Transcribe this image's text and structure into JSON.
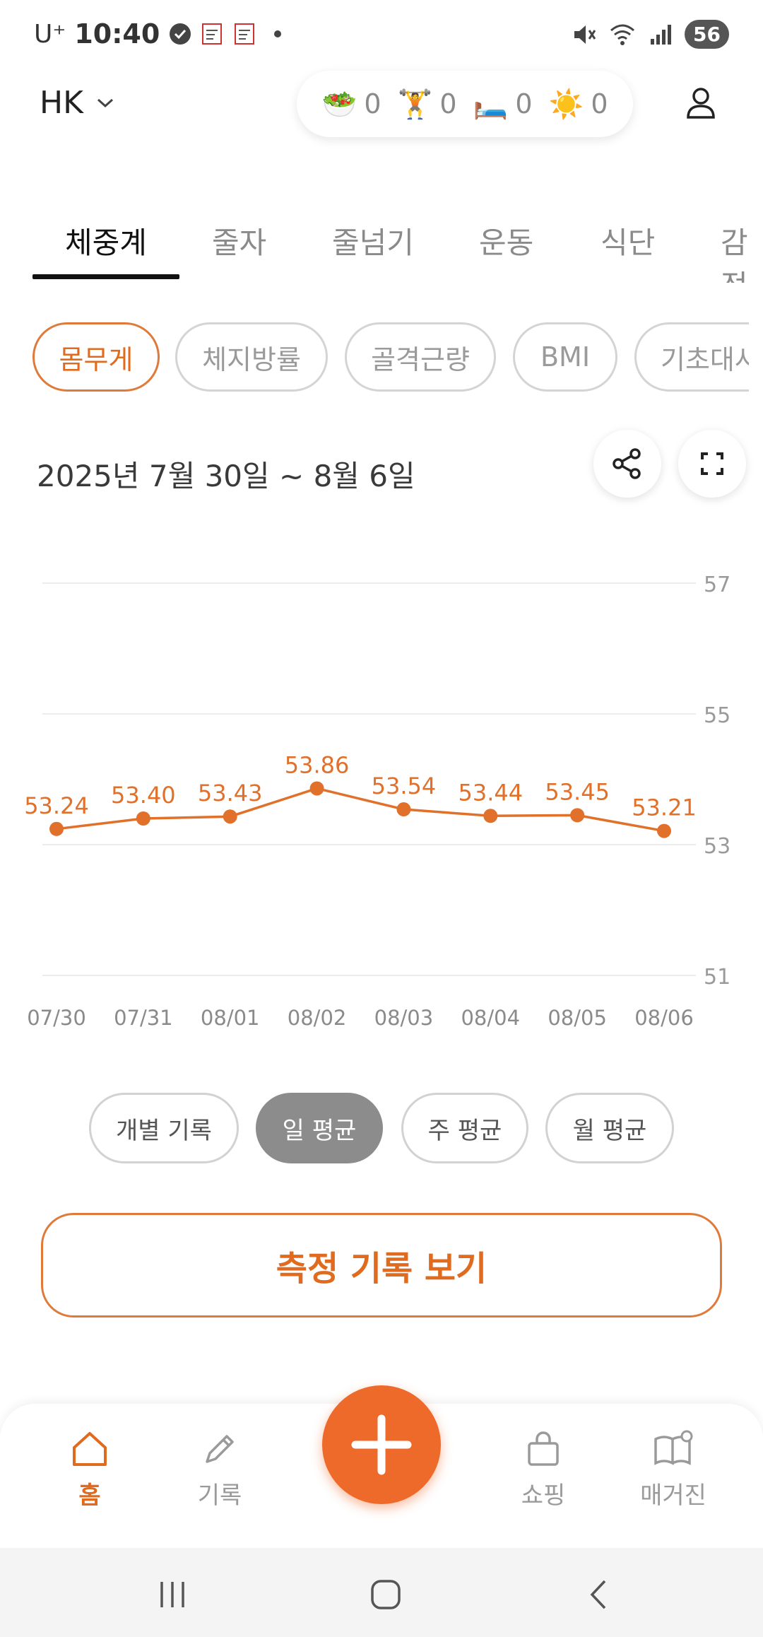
{
  "status_bar": {
    "carrier": "U⁺",
    "time": "10:40",
    "battery": "56",
    "icons": [
      "check-circle-icon",
      "notes-icon",
      "notes-icon",
      "dot-icon",
      "mute-icon",
      "wifi-icon",
      "signal-icon"
    ]
  },
  "header": {
    "profile_name": "HK",
    "counts": [
      {
        "emoji": "🥗",
        "name": "diet",
        "value": "0"
      },
      {
        "emoji": "🏋️",
        "name": "exercise",
        "value": "0"
      },
      {
        "emoji": "🛏️",
        "name": "sleep",
        "value": "0"
      },
      {
        "emoji": "☀️",
        "name": "mood",
        "value": "0"
      }
    ]
  },
  "tabs": [
    "체중계",
    "줄자",
    "줄넘기",
    "운동",
    "식단",
    "감정"
  ],
  "active_tab": "체중계",
  "chips": [
    "몸무게",
    "체지방률",
    "골격근량",
    "BMI",
    "기초대사"
  ],
  "active_chip": "몸무게",
  "date_range": "2025년 7월 30일 ~ 8월 6일",
  "chart_data": {
    "type": "line",
    "x": [
      "07/30",
      "07/31",
      "08/01",
      "08/02",
      "08/03",
      "08/04",
      "08/05",
      "08/06"
    ],
    "series": [
      {
        "values": [
          53.24,
          53.4,
          53.43,
          53.86,
          53.54,
          53.44,
          53.45,
          53.21
        ]
      }
    ],
    "data_labels": [
      "53.24",
      "53.40",
      "53.43",
      "53.86",
      "53.54",
      "53.44",
      "53.45",
      "53.21"
    ],
    "y_ticks": [
      "57",
      "55",
      "53",
      "51"
    ],
    "ylim": [
      51,
      57
    ],
    "y_axis_side": "right",
    "grid": true,
    "color": "#e0702a"
  },
  "aggregation": [
    "개별 기록",
    "일 평균",
    "주 평균",
    "월 평균"
  ],
  "active_aggregation": "일 평균",
  "view_records_label": "측정 기록 보기",
  "bottom_nav": {
    "home": "홈",
    "record": "기록",
    "shopping": "쇼핑",
    "magazine": "매거진"
  },
  "colors": {
    "accent": "#e06a1e",
    "fab": "#ee6a2a",
    "inactive": "#9a9a9a"
  }
}
